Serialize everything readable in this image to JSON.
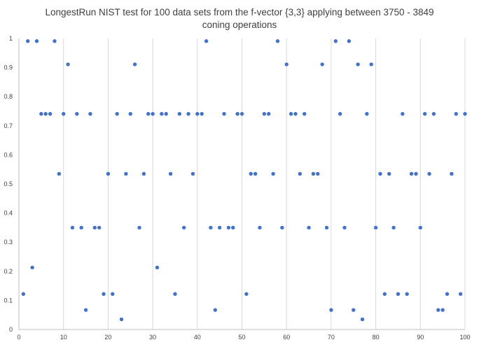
{
  "chart_data": {
    "type": "scatter",
    "title_line1": "LongestRun NIST test for 100 data sets from the f-vector {3,3} applying between 3750 - 3849",
    "title_line2": "coning operations",
    "xlabel": "",
    "ylabel": "",
    "xlim": [
      0,
      100
    ],
    "ylim": [
      0,
      1
    ],
    "x_ticks": [
      "0",
      "10",
      "20",
      "30",
      "40",
      "50",
      "60",
      "70",
      "80",
      "90",
      "100"
    ],
    "y_ticks": [
      "0",
      "0.1",
      "0.2",
      "0.3",
      "0.4",
      "0.5",
      "0.6",
      "0.7",
      "0.8",
      "0.9",
      "1"
    ],
    "grid": "vertical major gridlines",
    "marker_color": "#4472c4",
    "series": [
      {
        "x": [
          1,
          2,
          3,
          4,
          5,
          6,
          7,
          8,
          9,
          10,
          11,
          12,
          13,
          14,
          15,
          16,
          17,
          18,
          19,
          20,
          21,
          22,
          23,
          24,
          25,
          26,
          27,
          28,
          29,
          30,
          31,
          32,
          33,
          34,
          35,
          36,
          37,
          38,
          39,
          40,
          41,
          42,
          43,
          44,
          45,
          46,
          47,
          48,
          49,
          50,
          51,
          52,
          53,
          54,
          55,
          56,
          57,
          58,
          59,
          60,
          61,
          62,
          63,
          64,
          65,
          66,
          67,
          68,
          69,
          70,
          71,
          72,
          73,
          74,
          75,
          76,
          77,
          78,
          79,
          80,
          81,
          82,
          83,
          84,
          85,
          86,
          87,
          88,
          89,
          90,
          91,
          92,
          93,
          94,
          95,
          96,
          97,
          98,
          99,
          100
        ],
        "values": [
          0.122,
          0.991,
          0.213,
          0.991,
          0.741,
          0.741,
          0.741,
          0.991,
          0.535,
          0.741,
          0.911,
          0.35,
          0.741,
          0.35,
          0.067,
          0.741,
          0.35,
          0.35,
          0.122,
          0.535,
          0.122,
          0.741,
          0.035,
          0.535,
          0.741,
          0.911,
          0.35,
          0.535,
          0.741,
          0.741,
          0.213,
          0.741,
          0.741,
          0.535,
          0.122,
          0.741,
          0.35,
          0.741,
          0.535,
          0.741,
          0.741,
          0.991,
          0.35,
          0.067,
          0.35,
          0.741,
          0.35,
          0.35,
          0.741,
          0.741,
          0.122,
          0.535,
          0.535,
          0.35,
          0.741,
          0.741,
          0.535,
          0.991,
          0.35,
          0.911,
          0.741,
          0.741,
          0.535,
          0.741,
          0.35,
          0.535,
          0.535,
          0.911,
          0.35,
          0.067,
          0.991,
          0.741,
          0.35,
          0.991,
          0.067,
          0.911,
          0.035,
          0.741,
          0.911,
          0.35,
          0.535,
          0.122,
          0.535,
          0.35,
          0.122,
          0.741,
          0.122,
          0.535,
          0.535,
          0.35,
          0.741,
          0.535,
          0.741,
          0.067,
          0.067,
          0.122,
          0.535,
          0.741,
          0.122,
          0.741
        ]
      }
    ]
  }
}
